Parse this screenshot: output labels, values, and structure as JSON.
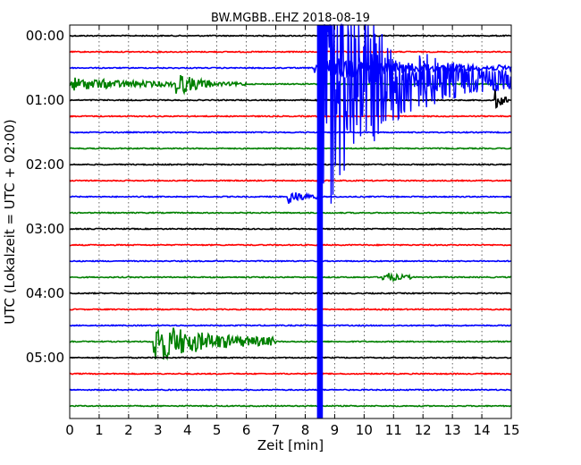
{
  "chart_data": {
    "type": "line",
    "title": "BW.MGBB..EHZ 2018-08-19",
    "xlabel": "Zeit  [min]",
    "ylabel": "UTC (Lokalzeit = UTC + 02:00)",
    "xlim": [
      0,
      15
    ],
    "x_ticks": [
      "0",
      "1",
      "2",
      "3",
      "4",
      "5",
      "6",
      "7",
      "8",
      "9",
      "10",
      "11",
      "12",
      "13",
      "14",
      "15"
    ],
    "y_ticks": [
      "00:00",
      "01:00",
      "02:00",
      "03:00",
      "04:00",
      "05:00"
    ],
    "grid": true,
    "trace_colors": [
      "#000000",
      "#ff0000",
      "#0000ff",
      "#008000"
    ],
    "trace_count": 24,
    "trace_interval_minutes": 15,
    "events": [
      {
        "trace": 3,
        "start_min": 0,
        "end_min": 6.0,
        "amplitude": 0.35
      },
      {
        "trace": 3,
        "start_min": 3.6,
        "end_min": 4.8,
        "amplitude": 0.7
      },
      {
        "trace": 2,
        "start_min": 8.3,
        "end_min": 15,
        "amplitude": 0.7
      },
      {
        "trace": 4,
        "start_min": 14.4,
        "end_min": 14.9,
        "amplitude": 0.8
      },
      {
        "trace": 10,
        "start_min": 7.4,
        "end_min": 8.5,
        "amplitude": 0.45
      },
      {
        "trace": 15,
        "start_min": 10.6,
        "end_min": 11.6,
        "amplitude": 0.4
      },
      {
        "trace": 19,
        "start_min": 2.85,
        "end_min": 7.0,
        "amplitude": 1.2
      }
    ],
    "large_event": {
      "start_trace": 0,
      "end_trace": 23,
      "x_min": 8.4,
      "x_max": 8.6
    }
  }
}
